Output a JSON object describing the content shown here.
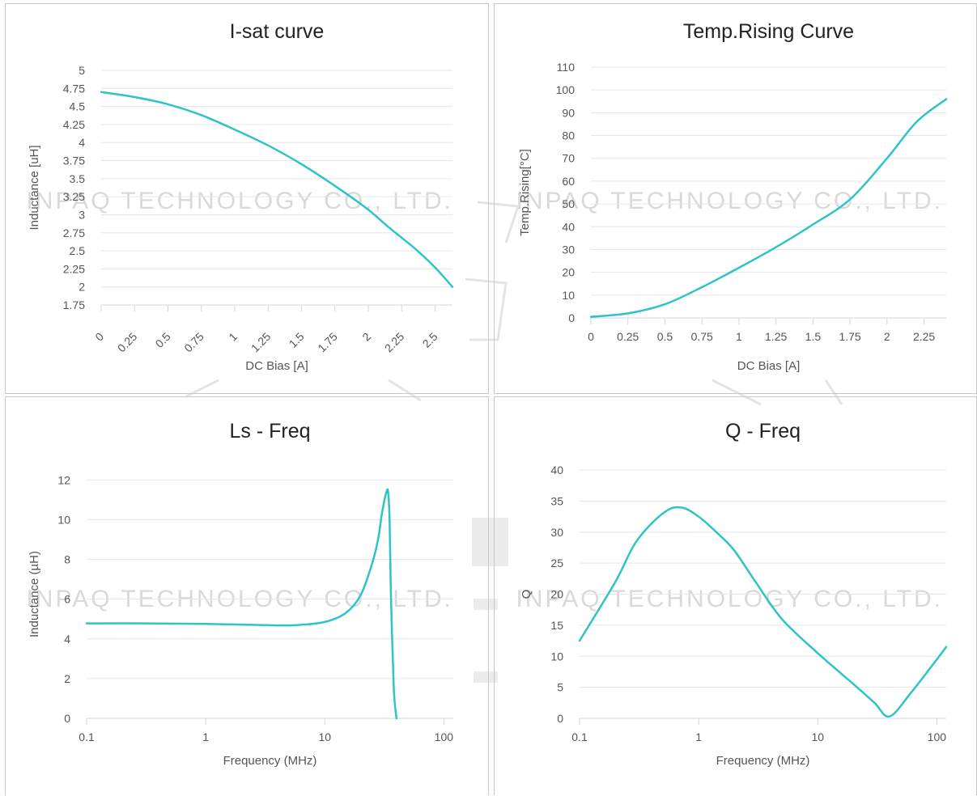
{
  "watermark": {
    "text": "INPAQ TECHNOLOGY CO., LTD.",
    "color": "#d9d9d9"
  },
  "chart_data": [
    {
      "type": "line",
      "title": "I-sat curve",
      "xlabel": "DC Bias [A]",
      "ylabel": "Inductance [uH]",
      "xticks": [
        0,
        0.25,
        0.5,
        0.75,
        1,
        1.25,
        1.5,
        1.75,
        2,
        2.25,
        2.5
      ],
      "yticks": [
        1.75,
        2,
        2.25,
        2.5,
        2.75,
        3,
        3.25,
        3.5,
        3.75,
        4,
        4.25,
        4.5,
        4.75,
        5
      ],
      "xlim": [
        0,
        2.63
      ],
      "ylim": [
        1.75,
        5
      ],
      "xscale": "linear",
      "xtick_rotation": true,
      "grid": true,
      "color": "#2ec4c6",
      "series": [
        {
          "x": [
            0,
            0.25,
            0.5,
            0.75,
            1,
            1.25,
            1.5,
            1.75,
            2,
            2.15,
            2.35,
            2.5,
            2.63
          ],
          "y": [
            4.7,
            4.63,
            4.53,
            4.38,
            4.18,
            3.96,
            3.7,
            3.4,
            3.07,
            2.83,
            2.53,
            2.27,
            2.0
          ]
        }
      ]
    },
    {
      "type": "line",
      "title": "Temp.Rising Curve",
      "xlabel": "DC Bias [A]",
      "ylabel": "Temp.Rising[°C]",
      "xticks": [
        0,
        0.25,
        0.5,
        0.75,
        1,
        1.25,
        1.5,
        1.75,
        2,
        2.25
      ],
      "yticks": [
        0,
        10,
        20,
        30,
        40,
        50,
        60,
        70,
        80,
        90,
        100,
        110
      ],
      "xlim": [
        0,
        2.4
      ],
      "ylim": [
        0,
        110
      ],
      "xscale": "linear",
      "grid": true,
      "color": "#2ec4c6",
      "series": [
        {
          "x": [
            0,
            0.25,
            0.5,
            0.75,
            1,
            1.25,
            1.5,
            1.75,
            2,
            2.2,
            2.4
          ],
          "y": [
            0.5,
            2,
            6,
            13.5,
            22,
            31,
            41,
            52,
            70,
            86,
            96
          ]
        }
      ]
    },
    {
      "type": "line",
      "title": "Ls - Freq",
      "xlabel": "Frequency (MHz)",
      "ylabel": "Inductance (µH)",
      "xticks": [
        0.1,
        1,
        10,
        100
      ],
      "yticks": [
        0,
        2,
        4,
        6,
        8,
        10,
        12
      ],
      "xlim": [
        0.1,
        120
      ],
      "ylim": [
        0,
        12.5
      ],
      "xscale": "log",
      "grid": true,
      "color": "#2ec4c6",
      "series": [
        {
          "x": [
            0.1,
            0.3,
            1,
            2,
            4,
            6,
            10,
            15,
            20,
            25,
            28,
            30,
            32,
            33,
            34,
            35,
            36,
            38,
            40
          ],
          "y": [
            4.78,
            4.78,
            4.75,
            4.72,
            4.68,
            4.7,
            4.85,
            5.3,
            6.2,
            7.8,
            9.0,
            10.2,
            11.1,
            11.4,
            11.42,
            10.0,
            6.0,
            1.5,
            0
          ]
        }
      ]
    },
    {
      "type": "line",
      "title": "Q - Freq",
      "xlabel": "Frequency (MHz)",
      "ylabel": "Q",
      "xticks": [
        0.1,
        1,
        10,
        100
      ],
      "yticks": [
        0,
        5,
        10,
        15,
        20,
        25,
        30,
        35,
        40
      ],
      "xlim": [
        0.1,
        120
      ],
      "ylim": [
        0,
        40
      ],
      "xscale": "log",
      "grid": true,
      "color": "#2ec4c6",
      "series": [
        {
          "x": [
            0.1,
            0.2,
            0.3,
            0.5,
            0.7,
            1,
            1.5,
            2,
            3,
            5,
            10,
            20,
            30,
            40,
            60,
            100,
            120
          ],
          "y": [
            12.5,
            22,
            28.5,
            33,
            34,
            32.5,
            29.5,
            27,
            22,
            16,
            10.5,
            5.5,
            2.5,
            0.3,
            4,
            9.5,
            11.5
          ]
        }
      ]
    }
  ]
}
